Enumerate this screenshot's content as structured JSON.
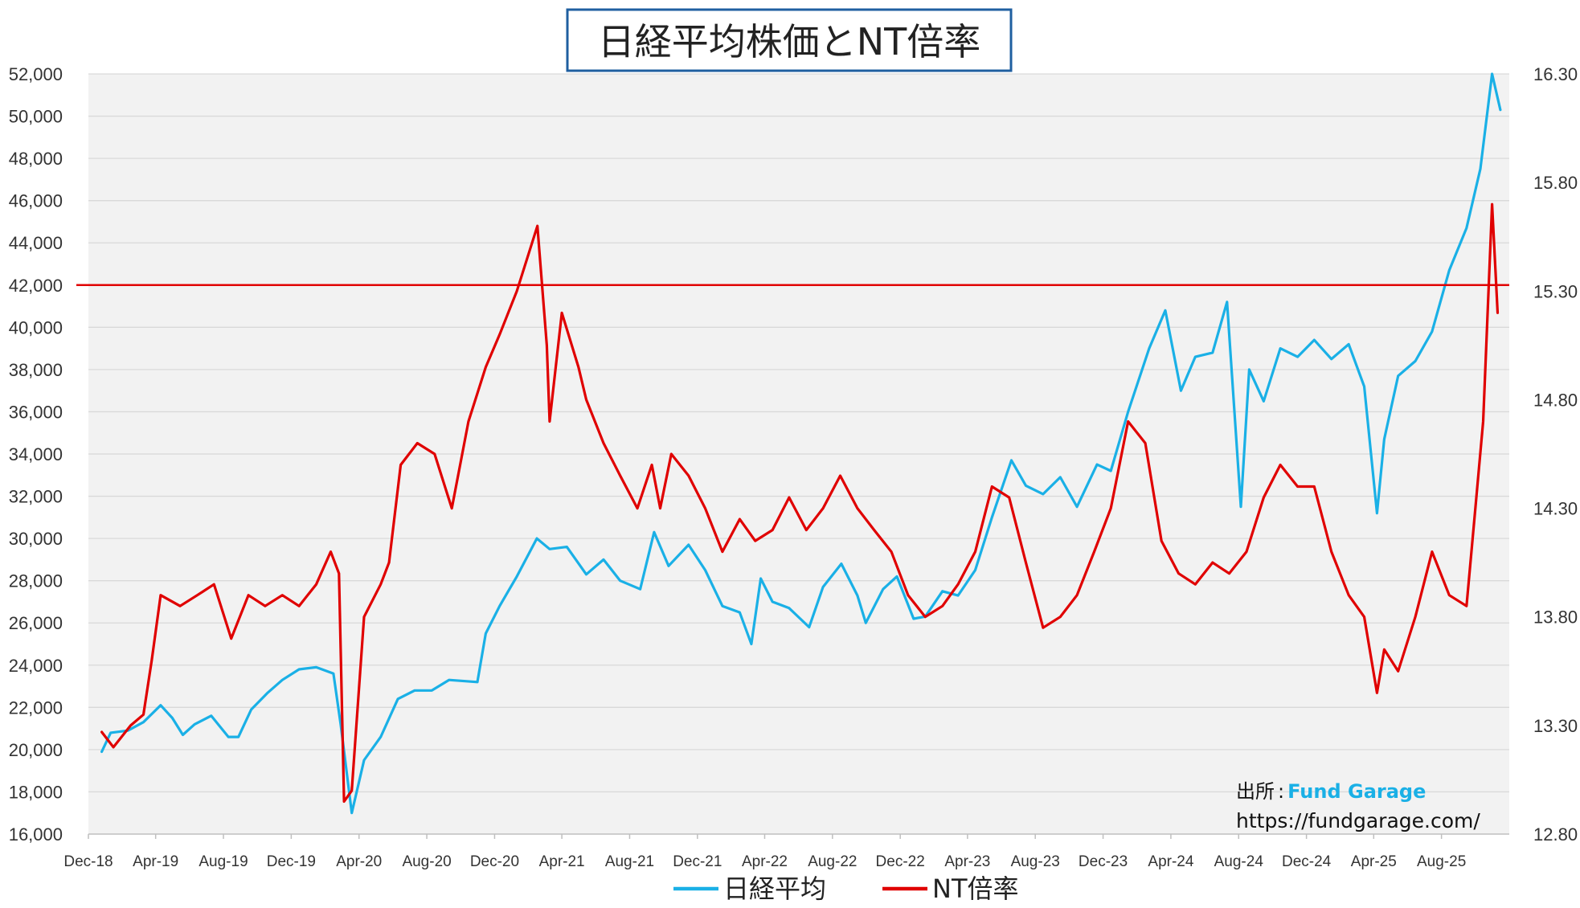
{
  "chart_data": {
    "type": "line",
    "title": "日経平均株価とNT倍率",
    "xlabel": "",
    "ylabel": "",
    "y2label": "",
    "x_tick_labels": [
      "Dec-18",
      "Apr-19",
      "Aug-19",
      "Dec-19",
      "Apr-20",
      "Aug-20",
      "Dec-20",
      "Apr-21",
      "Aug-21",
      "Dec-21",
      "Apr-22",
      "Aug-22",
      "Dec-22",
      "Apr-23",
      "Aug-23",
      "Dec-23",
      "Apr-24",
      "Aug-24",
      "Dec-24",
      "Apr-25",
      "Aug-25"
    ],
    "xlim": [
      "2018-12-01",
      "2025-12-01"
    ],
    "ylim": [
      16000,
      52000
    ],
    "y_ticks": [
      16000,
      18000,
      20000,
      22000,
      24000,
      26000,
      28000,
      30000,
      32000,
      34000,
      36000,
      38000,
      40000,
      42000,
      44000,
      46000,
      48000,
      50000,
      52000
    ],
    "y_tick_labels": [
      "16,000",
      "18,000",
      "20,000",
      "22,000",
      "24,000",
      "26,000",
      "28,000",
      "30,000",
      "32,000",
      "34,000",
      "36,000",
      "38,000",
      "40,000",
      "42,000",
      "44,000",
      "46,000",
      "48,000",
      "50,000",
      "52,000"
    ],
    "y2lim": [
      12.8,
      16.3
    ],
    "y2_tick_labels": [
      "12.80",
      "13.30",
      "13.80",
      "14.30",
      "14.80",
      "15.30",
      "15.80",
      "16.30"
    ],
    "y2_ticks": [
      12.8,
      13.3,
      13.8,
      14.3,
      14.8,
      15.3,
      15.8,
      16.3
    ],
    "grid": true,
    "legend": "bottom",
    "reference_line": {
      "axis": "y",
      "value": 42000,
      "color": "#e00000"
    },
    "series": [
      {
        "name": "日経平均",
        "axis": "left",
        "color": "#1ab0e6",
        "x": [
          "2018-12-25",
          "2019-01-10",
          "2019-02-10",
          "2019-03-10",
          "2019-04-10",
          "2019-05-01",
          "2019-05-20",
          "2019-06-10",
          "2019-07-10",
          "2019-08-10",
          "2019-08-28",
          "2019-09-20",
          "2019-10-20",
          "2019-11-15",
          "2019-12-15",
          "2020-01-15",
          "2020-02-15",
          "2020-02-28",
          "2020-03-19",
          "2020-04-10",
          "2020-05-10",
          "2020-06-10",
          "2020-07-10",
          "2020-08-10",
          "2020-09-10",
          "2020-10-31",
          "2020-11-15",
          "2020-12-10",
          "2021-01-10",
          "2021-02-15",
          "2021-03-10",
          "2021-04-10",
          "2021-05-15",
          "2021-06-15",
          "2021-07-15",
          "2021-08-20",
          "2021-09-14",
          "2021-10-10",
          "2021-11-15",
          "2021-12-15",
          "2022-01-15",
          "2022-02-15",
          "2022-03-08",
          "2022-03-25",
          "2022-04-15",
          "2022-05-15",
          "2022-06-20",
          "2022-07-15",
          "2022-08-17",
          "2022-09-15",
          "2022-09-30",
          "2022-10-31",
          "2022-11-25",
          "2022-12-25",
          "2023-01-15",
          "2023-02-15",
          "2023-03-15",
          "2023-04-15",
          "2023-05-15",
          "2023-06-19",
          "2023-07-15",
          "2023-08-15",
          "2023-09-15",
          "2023-10-15",
          "2023-11-20",
          "2023-12-15",
          "2024-01-15",
          "2024-02-22",
          "2024-03-22",
          "2024-04-19",
          "2024-05-15",
          "2024-06-15",
          "2024-07-11",
          "2024-08-05",
          "2024-08-20",
          "2024-09-15",
          "2024-10-15",
          "2024-11-15",
          "2024-12-15",
          "2025-01-15",
          "2025-02-15",
          "2025-03-15",
          "2025-04-07",
          "2025-04-20",
          "2025-05-15",
          "2025-06-15",
          "2025-07-15",
          "2025-08-15",
          "2025-09-15",
          "2025-10-10",
          "2025-10-31",
          "2025-11-15"
        ],
        "values": [
          19900,
          20800,
          20900,
          21300,
          22100,
          21500,
          20700,
          21200,
          21600,
          20600,
          20600,
          21900,
          22700,
          23300,
          23800,
          23900,
          23600,
          21200,
          17000,
          19500,
          20600,
          22400,
          22800,
          22800,
          23300,
          23200,
          25500,
          26800,
          28200,
          30000,
          29500,
          29600,
          28300,
          29000,
          28000,
          27600,
          30300,
          28700,
          29700,
          28500,
          26800,
          26500,
          25000,
          28100,
          27000,
          26700,
          25800,
          27700,
          28800,
          27300,
          26000,
          27600,
          28200,
          26200,
          26300,
          27500,
          27300,
          28500,
          31000,
          33700,
          32500,
          32100,
          32900,
          31500,
          33500,
          33200,
          36000,
          39000,
          40800,
          37000,
          38600,
          38800,
          41200,
          31500,
          38000,
          36500,
          39000,
          38600,
          39400,
          38500,
          39200,
          37200,
          31200,
          34700,
          37700,
          38400,
          39800,
          42700,
          44700,
          47500,
          52000,
          50300
        ]
      },
      {
        "name": "NT倍率",
        "axis": "right",
        "color": "#e00000",
        "x": [
          "2018-12-25",
          "2019-01-15",
          "2019-02-15",
          "2019-03-10",
          "2019-03-25",
          "2019-04-10",
          "2019-05-15",
          "2019-06-15",
          "2019-07-15",
          "2019-08-15",
          "2019-09-15",
          "2019-10-15",
          "2019-11-15",
          "2019-12-15",
          "2020-01-15",
          "2020-02-10",
          "2020-02-25",
          "2020-03-05",
          "2020-03-19",
          "2020-04-10",
          "2020-05-10",
          "2020-05-25",
          "2020-06-15",
          "2020-07-15",
          "2020-08-15",
          "2020-09-15",
          "2020-10-15",
          "2020-11-15",
          "2020-12-10",
          "2021-01-10",
          "2021-02-16",
          "2021-03-05",
          "2021-03-10",
          "2021-04-01",
          "2021-05-01",
          "2021-05-15",
          "2021-06-15",
          "2021-07-15",
          "2021-08-15",
          "2021-09-10",
          "2021-09-25",
          "2021-10-15",
          "2021-11-15",
          "2021-12-15",
          "2022-01-15",
          "2022-02-15",
          "2022-03-15",
          "2022-04-15",
          "2022-05-15",
          "2022-06-15",
          "2022-07-15",
          "2022-08-15",
          "2022-09-15",
          "2022-10-15",
          "2022-11-15",
          "2022-12-15",
          "2023-01-15",
          "2023-02-15",
          "2023-03-15",
          "2023-04-15",
          "2023-05-15",
          "2023-06-15",
          "2023-07-15",
          "2023-08-15",
          "2023-09-15",
          "2023-10-15",
          "2023-11-15",
          "2023-12-15",
          "2024-01-15",
          "2024-02-15",
          "2024-03-15",
          "2024-04-15",
          "2024-05-15",
          "2024-06-15",
          "2024-07-15",
          "2024-08-15",
          "2024-09-15",
          "2024-10-15",
          "2024-11-15",
          "2024-12-15",
          "2025-01-15",
          "2025-02-15",
          "2025-03-15",
          "2025-04-07",
          "2025-04-20",
          "2025-05-15",
          "2025-06-15",
          "2025-07-15",
          "2025-08-15",
          "2025-09-15",
          "2025-10-01",
          "2025-10-15",
          "2025-10-31",
          "2025-11-10"
        ],
        "values": [
          13.27,
          13.2,
          13.3,
          13.35,
          13.6,
          13.9,
          13.85,
          13.9,
          13.95,
          13.7,
          13.9,
          13.85,
          13.9,
          13.85,
          13.95,
          14.1,
          14.0,
          12.95,
          13.0,
          13.8,
          13.95,
          14.05,
          14.5,
          14.6,
          14.55,
          14.3,
          14.7,
          14.95,
          15.1,
          15.3,
          15.6,
          15.05,
          14.7,
          15.2,
          14.95,
          14.8,
          14.6,
          14.45,
          14.3,
          14.5,
          14.3,
          14.55,
          14.45,
          14.3,
          14.1,
          14.25,
          14.15,
          14.2,
          14.35,
          14.2,
          14.3,
          14.45,
          14.3,
          14.2,
          14.1,
          13.9,
          13.8,
          13.85,
          13.95,
          14.1,
          14.4,
          14.35,
          14.05,
          13.75,
          13.8,
          13.9,
          14.1,
          14.3,
          14.7,
          14.6,
          14.15,
          14.0,
          13.95,
          14.05,
          14.0,
          14.1,
          14.35,
          14.5,
          14.4,
          14.4,
          14.1,
          13.9,
          13.8,
          13.45,
          13.65,
          13.55,
          13.8,
          14.1,
          13.9,
          13.85,
          14.3,
          14.7,
          15.7,
          15.2
        ]
      }
    ]
  },
  "source_note": {
    "label": "出所",
    "separator": ":",
    "name": "Fund Garage",
    "url": "https://fundgarage.com/"
  },
  "colors": {
    "plot_background": "#f2f2f2",
    "gridline": "#d9d9d9",
    "title_border": "#1f5fa0",
    "source_name": "#1ab0e6"
  }
}
